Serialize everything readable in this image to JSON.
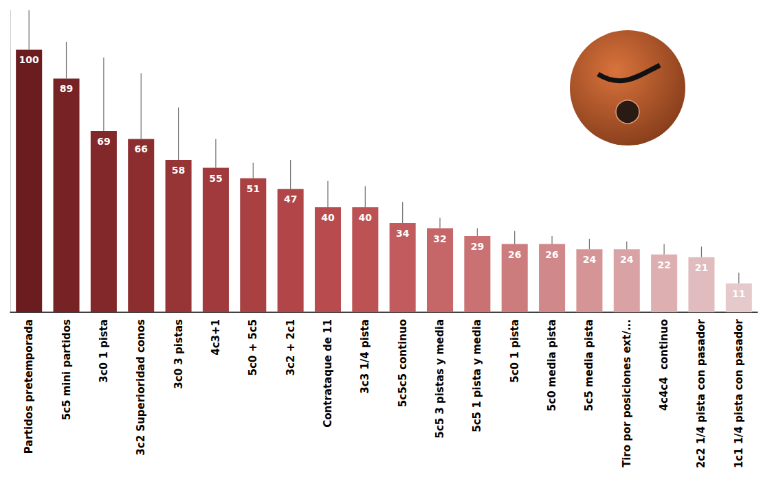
{
  "chart_data": {
    "type": "bar",
    "categories": [
      "Partidos pretemporada",
      "5c5 mini partidos",
      "3c0 1 pista",
      "3c2 Superioridad conos",
      "3c0 3 pistas",
      "4c3+1",
      "5c0 + 5c5",
      "3c2 + 2c1",
      "Contrataque de 11",
      "3c3 1/4 pista",
      "5c5c5 continuo",
      "5c5 3 pistas y media",
      "5c5 1 pista y media",
      "5c0 1 pista",
      "5c0 media pista",
      "5c5 media pista",
      "Tiro por posiciones ext/...",
      "4c4c4  continuo",
      "2c2 1/4 pista con pasador",
      "1c1 1/4 pista con pasador"
    ],
    "values": [
      100,
      89,
      69,
      66,
      58,
      55,
      51,
      47,
      40,
      40,
      34,
      32,
      29,
      26,
      26,
      24,
      24,
      22,
      21,
      11
    ],
    "errors": [
      15,
      14,
      28,
      25,
      20,
      11,
      6,
      11,
      10,
      8,
      8,
      4,
      3,
      5,
      3,
      4,
      3,
      4,
      4,
      4
    ],
    "colors": [
      "#6b1c1e",
      "#772224",
      "#82282a",
      "#8c2e30",
      "#963436",
      "#a03a3c",
      "#a94042",
      "#b24547",
      "#b84b4d",
      "#bd5254",
      "#c15b5d",
      "#c56668",
      "#c97173",
      "#cd7c7e",
      "#d1888a",
      "#d59597",
      "#d9a2a4",
      "#ddafb1",
      "#e1bcbe",
      "#e6cacb"
    ],
    "ylim": [
      0,
      115
    ],
    "grid": false,
    "data_labels": true,
    "tick_labels": "x"
  }
}
